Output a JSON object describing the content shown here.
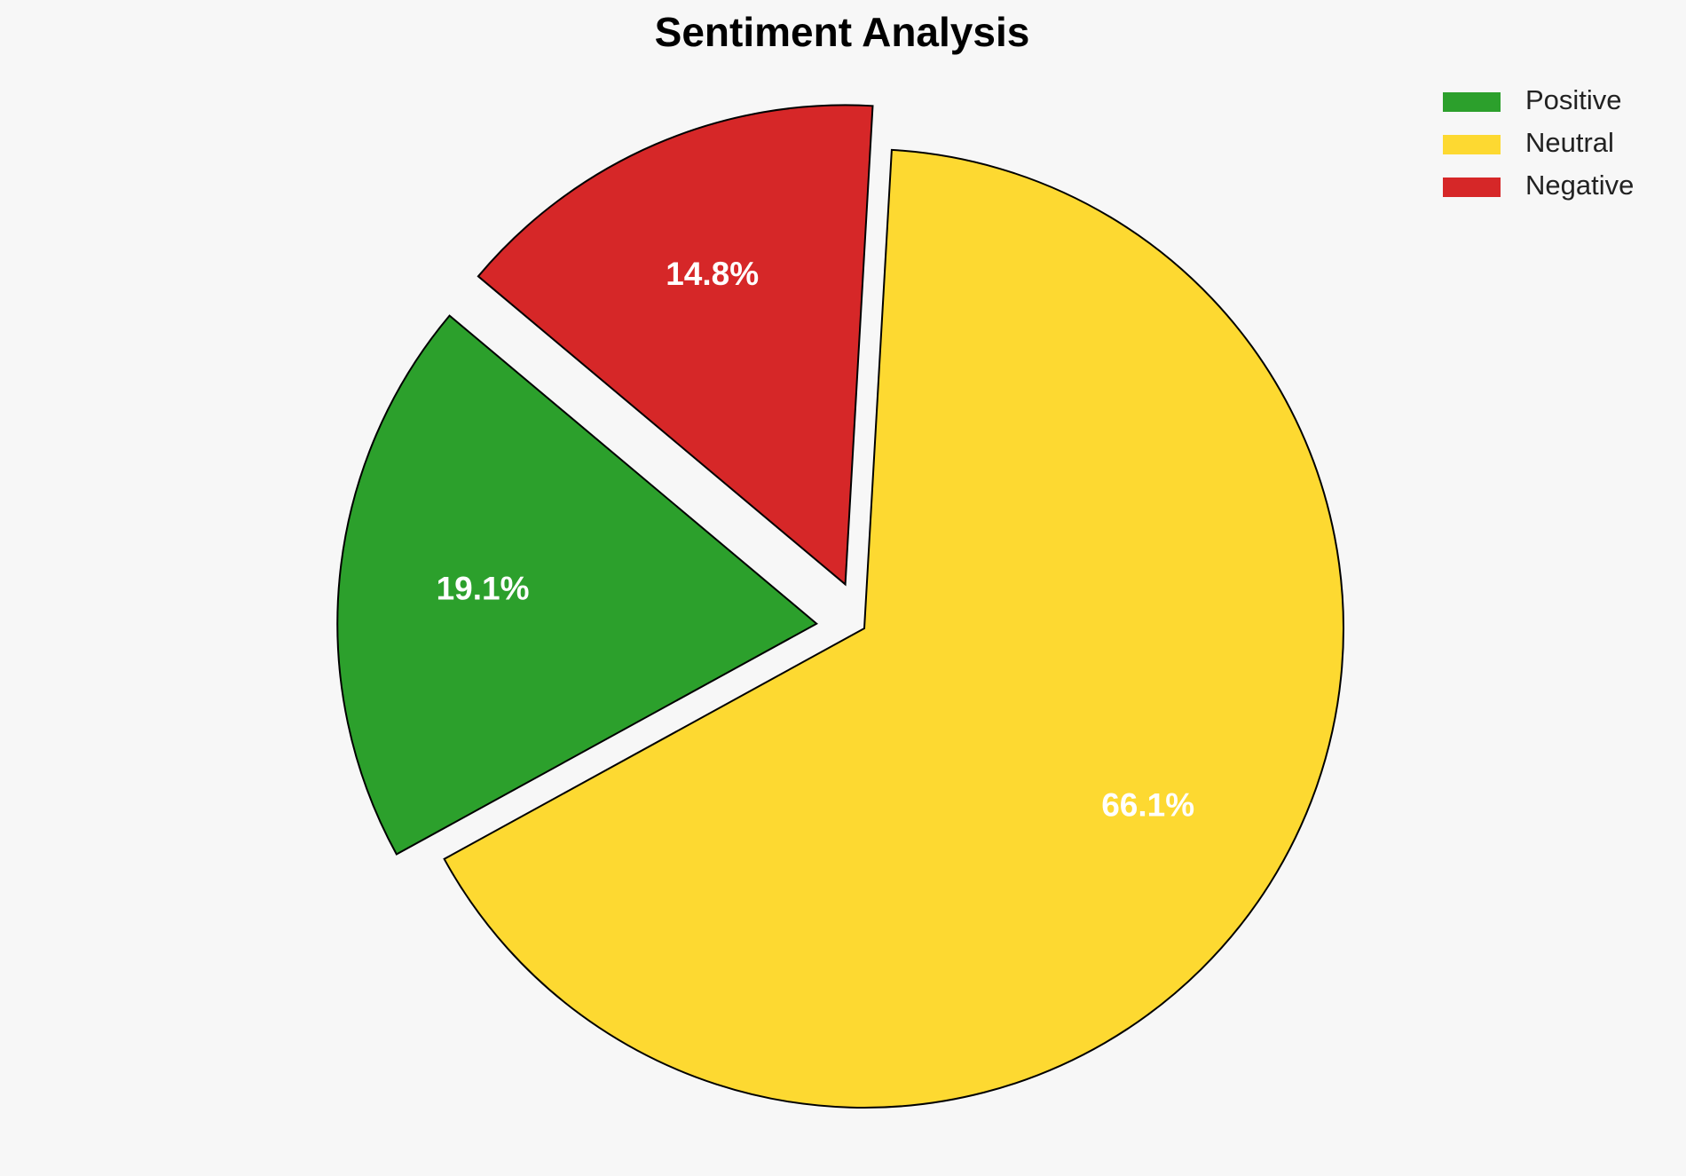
{
  "chart_data": {
    "type": "pie",
    "title": "Sentiment Analysis",
    "categories": [
      "Positive",
      "Neutral",
      "Negative"
    ],
    "values": [
      19.1,
      66.1,
      14.8
    ],
    "value_labels": [
      "19.1%",
      "66.1%",
      "14.8%"
    ],
    "colors": [
      "#2ca02c",
      "#fdd931",
      "#d62728"
    ],
    "legend": "upper right"
  }
}
